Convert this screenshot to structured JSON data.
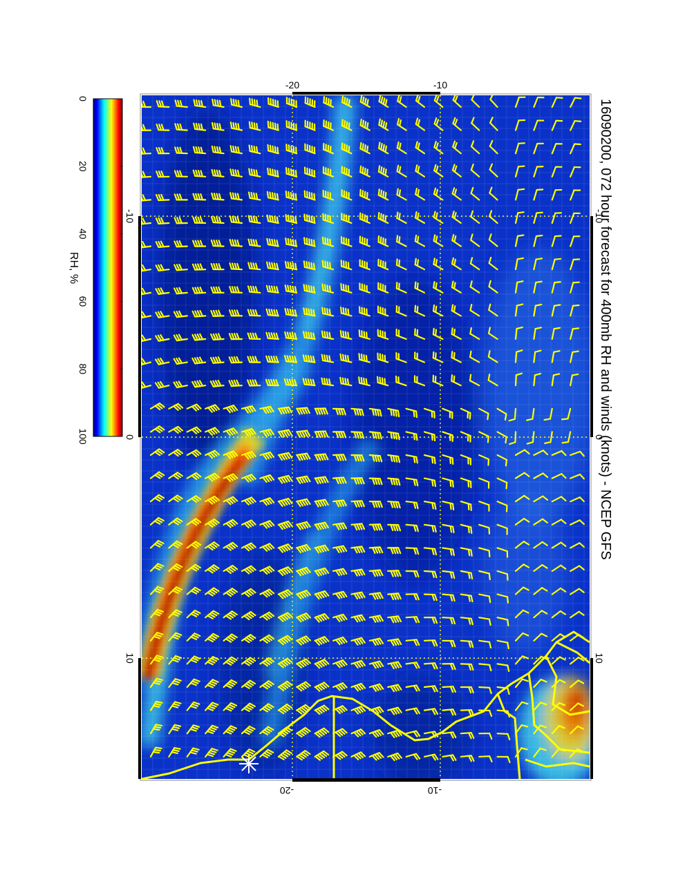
{
  "title": "16090200, 072 hour forecast for 400mb RH and winds (knots) - NCEP GFS",
  "colorbar": {
    "label": "RH, %",
    "ticks": [
      "0",
      "20",
      "40",
      "60",
      "80",
      "100"
    ],
    "colors": [
      "#00007f",
      "#0000ff",
      "#0080ff",
      "#00ffff",
      "#80ff80",
      "#ffff00",
      "#ff8000",
      "#ff0000",
      "#7f0000"
    ]
  },
  "map": {
    "grid_labels_top": [
      "-20",
      "-10"
    ],
    "grid_labels_bottom": [
      "-20",
      "-10"
    ],
    "grid_labels_left": [
      "-10",
      "0",
      "10"
    ],
    "grid_labels_right": [
      "-10",
      "0",
      "10"
    ],
    "field_colors": {
      "background": "#0a32c8",
      "dark_blue": "#021a8c",
      "cyan": "#3fc8e6",
      "yellow": "#e6d21e",
      "red": "#c81400",
      "dark_red": "#8c0000",
      "coast": "#ffff00",
      "barb": "#ffff00"
    }
  }
}
